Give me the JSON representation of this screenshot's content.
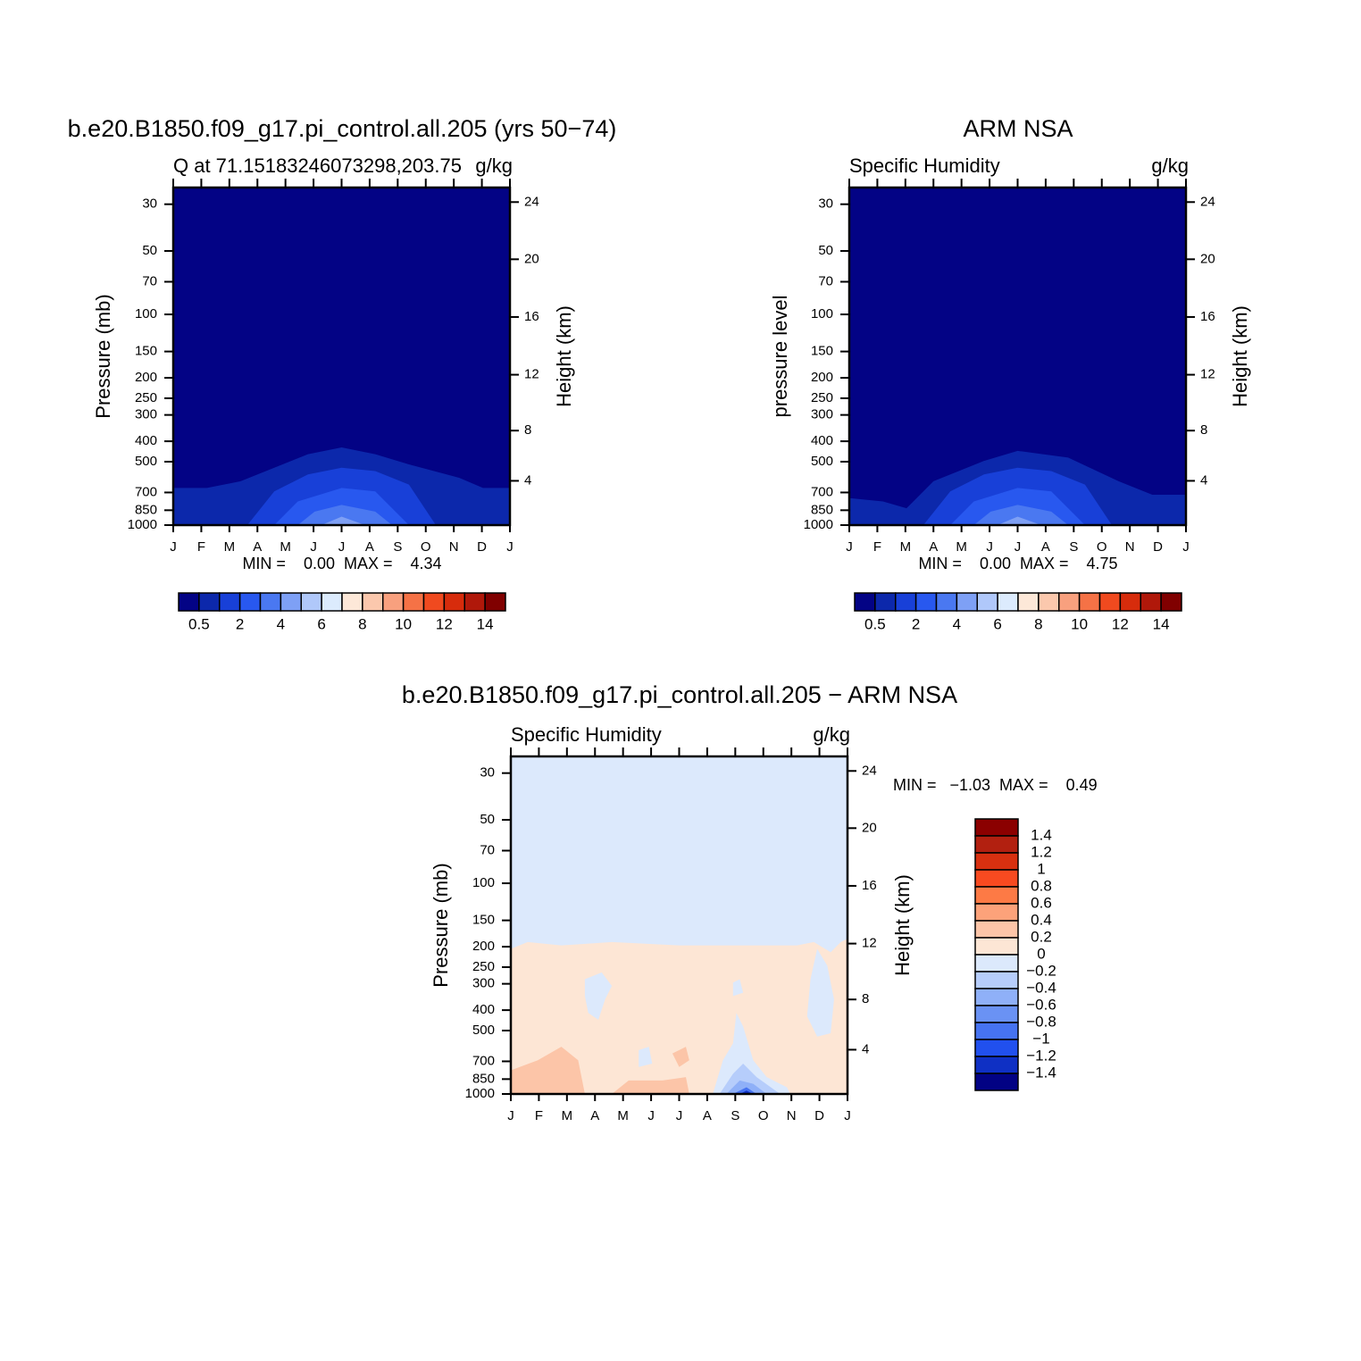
{
  "chart_data": [
    {
      "type": "contour",
      "title": "b.e20.B1850.f09_g17.pi_control.all.205 (yrs 50−74)",
      "subtitle_left": "Q at 71.15183246073298,203.75",
      "subtitle_right": "g/kg",
      "ylabel": "Pressure (mb)",
      "y2label": "Height (km)",
      "log_scale": true,
      "categories": [
        "J",
        "F",
        "M",
        "A",
        "M",
        "J",
        "J",
        "A",
        "S",
        "O",
        "N",
        "D",
        "J"
      ],
      "ylim": [
        1000,
        25
      ],
      "yticks": [
        30,
        50,
        70,
        100,
        150,
        200,
        250,
        300,
        400,
        500,
        700,
        850,
        1000
      ],
      "y2ticks": [
        4,
        8,
        12,
        16,
        20,
        24
      ],
      "stats": "MIN =    0.00  MAX =    4.34",
      "levels": [
        0.5,
        1,
        2,
        3,
        4,
        5,
        6,
        7,
        8,
        9,
        10,
        11,
        12,
        13,
        14
      ],
      "colors": [
        "#030385",
        "#0c28ab",
        "#1840d8",
        "#2858ef",
        "#4a78f1",
        "#7ea0f5",
        "#b0c8fa",
        "#dcebfd",
        "#fde8d8",
        "#fbc8ad",
        "#f8a07e",
        "#f57246",
        "#f04a1f",
        "#d72c0c",
        "#b0180a",
        "#800000"
      ]
    },
    {
      "type": "contour",
      "title": "ARM NSA",
      "subtitle_left": "Specific Humidity",
      "subtitle_right": "g/kg",
      "ylabel": "pressure level",
      "y2label": "Height (km)",
      "log_scale": true,
      "categories": [
        "J",
        "F",
        "M",
        "A",
        "M",
        "J",
        "J",
        "A",
        "S",
        "O",
        "N",
        "D",
        "J"
      ],
      "ylim": [
        1000,
        25
      ],
      "yticks": [
        30,
        50,
        70,
        100,
        150,
        200,
        250,
        300,
        400,
        500,
        700,
        850,
        1000
      ],
      "y2ticks": [
        4,
        8,
        12,
        16,
        20,
        24
      ],
      "stats": "MIN =    0.00  MAX =    4.75",
      "levels": [
        0.5,
        1,
        2,
        3,
        4,
        5,
        6,
        7,
        8,
        9,
        10,
        11,
        12,
        13,
        14
      ],
      "colors": [
        "#030385",
        "#0c28ab",
        "#1840d8",
        "#2858ef",
        "#4a78f1",
        "#7ea0f5",
        "#b0c8fa",
        "#dcebfd",
        "#fde8d8",
        "#fbc8ad",
        "#f8a07e",
        "#f57246",
        "#f04a1f",
        "#d72c0c",
        "#b0180a",
        "#800000"
      ]
    },
    {
      "type": "contour",
      "title": "b.e20.B1850.f09_g17.pi_control.all.205 − ARM NSA",
      "subtitle_left": "Specific Humidity",
      "subtitle_right": "g/kg",
      "ylabel": "Pressure (mb)",
      "y2label": "Height (km)",
      "log_scale": true,
      "categories": [
        "J",
        "F",
        "M",
        "A",
        "M",
        "J",
        "J",
        "A",
        "S",
        "O",
        "N",
        "D",
        "J"
      ],
      "ylim": [
        1000,
        25
      ],
      "yticks": [
        30,
        50,
        70,
        100,
        150,
        200,
        250,
        300,
        400,
        500,
        700,
        850,
        1000
      ],
      "y2ticks": [
        4,
        8,
        12,
        16,
        20,
        24
      ],
      "stats": "MIN =   −1.03  MAX =    0.49",
      "levels": [
        {
          "value": -1.4,
          "label": "−1.4"
        },
        {
          "value": -1.2,
          "label": "−1.2"
        },
        {
          "value": -1,
          "label": "−1"
        },
        {
          "value": -0.8,
          "label": "−0.8"
        },
        {
          "value": -0.6,
          "label": "−0.6"
        },
        {
          "value": -0.4,
          "label": "−0.4"
        },
        {
          "value": -0.2,
          "label": "−0.2"
        },
        0,
        0.2,
        0.4,
        0.6,
        0.8,
        1,
        1.2,
        1.4
      ],
      "colors": [
        "#8b0000",
        "#b22010",
        "#d83010",
        "#f84a20",
        "#fd7a45",
        "#fca27a",
        "#fcc5a8",
        "#fde6d5",
        "#dce9fc",
        "#b6cdfb",
        "#8fb0f8",
        "#6a92f4",
        "#4673f1",
        "#2150ee",
        "#0f30c4",
        "#020284"
      ]
    }
  ]
}
